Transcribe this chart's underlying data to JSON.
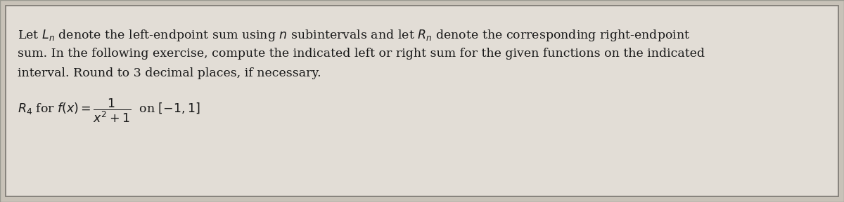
{
  "background_color": "#c8c2b8",
  "box_color": "#e2ddd6",
  "box_border_color": "#7a7670",
  "text_color": "#1a1a1a",
  "line1": "Let $L_n$ denote the left-endpoint sum using $n$ subintervals and let $R_n$ denote the corresponding right-endpoint",
  "line2": "sum. In the following exercise, compute the indicated left or right sum for the given functions on the indicated",
  "line3": "interval. Round to 3 decimal places, if necessary.",
  "formula_line": "$R_4$ for $f(x) = \\dfrac{1}{x^2 + 1}$  on $[-1, 1]$",
  "font_size_paragraph": 12.5,
  "font_size_formula": 12.5
}
